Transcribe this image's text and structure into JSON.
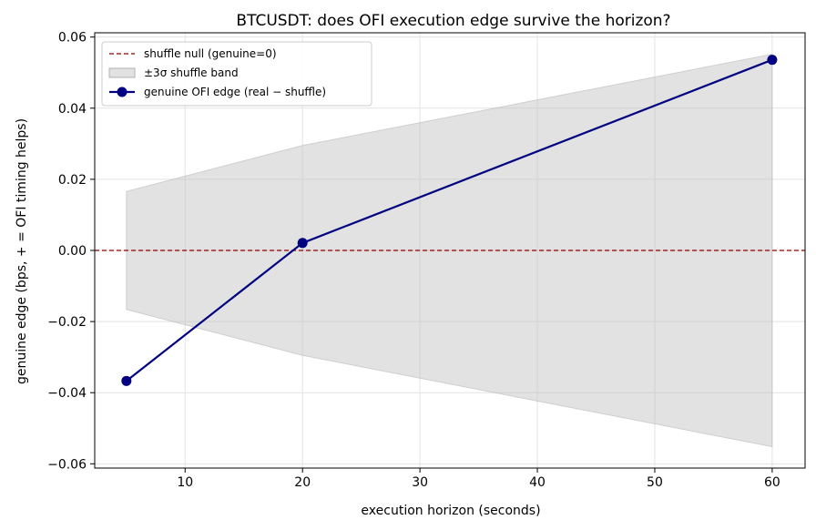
{
  "chart_data": {
    "type": "line",
    "title": "BTCUSDT: does OFI execution edge survive the horizon?",
    "xlabel": "execution horizon (seconds)",
    "ylabel": "genuine edge  (bps,  + = OFI timing helps)",
    "xlim": [
      2.3,
      62.8
    ],
    "ylim": [
      -0.0612,
      0.0612
    ],
    "x_ticks": [
      10,
      20,
      30,
      40,
      50,
      60
    ],
    "y_ticks": [
      -0.06,
      -0.04,
      -0.02,
      0.0,
      0.02,
      0.04,
      0.06
    ],
    "x_tick_labels": [
      "10",
      "20",
      "30",
      "40",
      "50",
      "60"
    ],
    "y_tick_labels": [
      "−0.06",
      "−0.04",
      "−0.02",
      "0.00",
      "0.02",
      "0.04",
      "0.06"
    ],
    "grid": true,
    "legend_position": "top-left",
    "x": [
      5,
      20,
      60
    ],
    "series": [
      {
        "name": "genuine OFI edge (real − shuffle)",
        "kind": "line-marker",
        "color": "#000080",
        "values": [
          -0.0367,
          0.0021,
          0.0536
        ]
      },
      {
        "name": "±3σ shuffle band",
        "kind": "band",
        "color": "#bfbfbf",
        "lower": [
          -0.0166,
          -0.0295,
          -0.0552
        ],
        "upper": [
          0.0166,
          0.0295,
          0.0552
        ]
      },
      {
        "name": "shuffle null (genuine=0)",
        "kind": "hline",
        "color": "#8b0000",
        "value": 0.0
      }
    ]
  }
}
